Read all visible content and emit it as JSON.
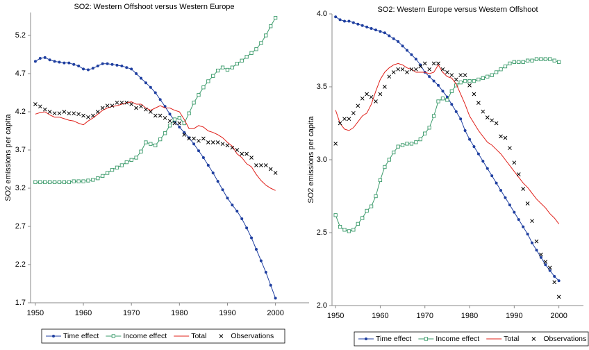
{
  "chart_data": [
    {
      "type": "line",
      "title": "SO2: Western  Offshoot versus Western  Europe",
      "y_label": "SO2 emissions per capita",
      "x": [
        1950,
        1951,
        1952,
        1953,
        1954,
        1955,
        1956,
        1957,
        1958,
        1959,
        1960,
        1961,
        1962,
        1963,
        1964,
        1965,
        1966,
        1967,
        1968,
        1969,
        1970,
        1971,
        1972,
        1973,
        1974,
        1975,
        1976,
        1977,
        1978,
        1979,
        1980,
        1981,
        1982,
        1983,
        1984,
        1985,
        1986,
        1987,
        1988,
        1989,
        1990,
        1991,
        1992,
        1993,
        1994,
        1995,
        1996,
        1997,
        1998,
        1999,
        2000
      ],
      "series": [
        {
          "name": "Time effect",
          "color": "#1f3fa0",
          "marker": "dot",
          "line": true,
          "values": [
            4.86,
            4.9,
            4.91,
            4.88,
            4.86,
            4.85,
            4.84,
            4.84,
            4.82,
            4.8,
            4.76,
            4.75,
            4.77,
            4.8,
            4.83,
            4.83,
            4.82,
            4.81,
            4.8,
            4.78,
            4.76,
            4.7,
            4.64,
            4.58,
            4.52,
            4.45,
            4.36,
            4.27,
            4.17,
            4.08,
            4.0,
            3.93,
            3.86,
            3.78,
            3.69,
            3.6,
            3.5,
            3.4,
            3.29,
            3.18,
            3.07,
            2.98,
            2.9,
            2.8,
            2.68,
            2.55,
            2.4,
            2.25,
            2.1,
            1.93,
            1.76
          ]
        },
        {
          "name": "Income effect",
          "color": "#3a9a6a",
          "marker": "square",
          "line": true,
          "values": [
            3.28,
            3.28,
            3.28,
            3.28,
            3.28,
            3.28,
            3.28,
            3.28,
            3.29,
            3.29,
            3.29,
            3.3,
            3.31,
            3.33,
            3.36,
            3.4,
            3.44,
            3.47,
            3.5,
            3.54,
            3.57,
            3.6,
            3.68,
            3.8,
            3.78,
            3.76,
            3.84,
            3.92,
            4.02,
            4.1,
            4.12,
            4.05,
            4.18,
            4.32,
            4.42,
            4.52,
            4.6,
            4.67,
            4.74,
            4.78,
            4.75,
            4.78,
            4.83,
            4.87,
            4.92,
            4.97,
            5.02,
            5.1,
            5.2,
            5.32,
            5.43
          ]
        },
        {
          "name": "Total",
          "color": "#e0201a",
          "marker": "none",
          "line": true,
          "values": [
            4.17,
            4.19,
            4.2,
            4.16,
            4.13,
            4.13,
            4.11,
            4.09,
            4.08,
            4.05,
            4.03,
            4.08,
            4.12,
            4.17,
            4.22,
            4.25,
            4.27,
            4.28,
            4.3,
            4.32,
            4.33,
            4.3,
            4.3,
            4.25,
            4.22,
            4.25,
            4.28,
            4.25,
            4.25,
            4.22,
            4.2,
            4.1,
            3.98,
            3.98,
            4.02,
            4.0,
            3.95,
            3.93,
            3.9,
            3.86,
            3.8,
            3.75,
            3.65,
            3.6,
            3.52,
            3.48,
            3.38,
            3.3,
            3.24,
            3.2,
            3.17
          ]
        },
        {
          "name": "Observations",
          "color": "#000000",
          "marker": "x",
          "line": false,
          "values": [
            4.3,
            4.27,
            4.23,
            4.2,
            4.18,
            4.18,
            4.2,
            4.18,
            4.18,
            4.17,
            4.15,
            4.13,
            4.15,
            4.2,
            4.25,
            4.28,
            4.28,
            4.32,
            4.32,
            4.32,
            4.3,
            4.25,
            4.27,
            4.23,
            4.2,
            4.15,
            4.15,
            4.12,
            4.08,
            4.05,
            4.05,
            3.9,
            3.85,
            3.85,
            3.82,
            3.85,
            3.8,
            3.8,
            3.8,
            3.78,
            3.76,
            3.73,
            3.7,
            3.65,
            3.65,
            3.6,
            3.5,
            3.5,
            3.5,
            3.45,
            3.4
          ]
        }
      ],
      "xlim": [
        1949,
        2007
      ],
      "xticks": [
        1950,
        1960,
        1970,
        1980,
        1990,
        2000
      ],
      "ylim": [
        1.7,
        5.5
      ],
      "yticks": [
        1.7,
        2.2,
        2.7,
        3.2,
        3.7,
        4.2,
        4.7,
        5.2
      ],
      "grid": false
    },
    {
      "type": "line",
      "title": "SO2: Western Europe versus Western Offshoot",
      "y_label": "SO2 emissions per capita",
      "x": [
        1950,
        1951,
        1952,
        1953,
        1954,
        1955,
        1956,
        1957,
        1958,
        1959,
        1960,
        1961,
        1962,
        1963,
        1964,
        1965,
        1966,
        1967,
        1968,
        1969,
        1970,
        1971,
        1972,
        1973,
        1974,
        1975,
        1976,
        1977,
        1978,
        1979,
        1980,
        1981,
        1982,
        1983,
        1984,
        1985,
        1986,
        1987,
        1988,
        1989,
        1990,
        1991,
        1992,
        1993,
        1994,
        1995,
        1996,
        1997,
        1998,
        1999,
        2000
      ],
      "series": [
        {
          "name": "Time effect",
          "color": "#1f3fa0",
          "marker": "dot",
          "line": true,
          "values": [
            3.98,
            3.96,
            3.95,
            3.95,
            3.94,
            3.93,
            3.92,
            3.91,
            3.9,
            3.89,
            3.88,
            3.87,
            3.85,
            3.83,
            3.81,
            3.78,
            3.75,
            3.72,
            3.69,
            3.65,
            3.6,
            3.57,
            3.54,
            3.51,
            3.47,
            3.43,
            3.38,
            3.33,
            3.28,
            3.2,
            3.14,
            3.09,
            3.04,
            2.99,
            2.94,
            2.89,
            2.84,
            2.79,
            2.74,
            2.69,
            2.64,
            2.59,
            2.54,
            2.49,
            2.43,
            2.38,
            2.33,
            2.28,
            2.24,
            2.2,
            2.17
          ]
        },
        {
          "name": "Income effect",
          "color": "#3a9a6a",
          "marker": "square",
          "line": true,
          "values": [
            2.62,
            2.54,
            2.52,
            2.51,
            2.52,
            2.56,
            2.6,
            2.65,
            2.68,
            2.75,
            2.86,
            2.95,
            3.0,
            3.05,
            3.09,
            3.1,
            3.11,
            3.11,
            3.12,
            3.14,
            3.18,
            3.22,
            3.3,
            3.4,
            3.42,
            3.41,
            3.47,
            3.51,
            3.53,
            3.54,
            3.54,
            3.54,
            3.55,
            3.56,
            3.57,
            3.58,
            3.6,
            3.62,
            3.64,
            3.66,
            3.67,
            3.67,
            3.67,
            3.68,
            3.68,
            3.69,
            3.69,
            3.69,
            3.69,
            3.68,
            3.67
          ]
        },
        {
          "name": "Total",
          "color": "#e0201a",
          "marker": "none",
          "line": true,
          "values": [
            3.34,
            3.25,
            3.21,
            3.2,
            3.22,
            3.26,
            3.3,
            3.32,
            3.38,
            3.47,
            3.55,
            3.6,
            3.63,
            3.65,
            3.66,
            3.65,
            3.63,
            3.62,
            3.6,
            3.6,
            3.6,
            3.59,
            3.6,
            3.65,
            3.6,
            3.57,
            3.56,
            3.52,
            3.45,
            3.38,
            3.3,
            3.25,
            3.2,
            3.16,
            3.12,
            3.1,
            3.07,
            3.04,
            3.0,
            2.96,
            2.92,
            2.88,
            2.84,
            2.81,
            2.77,
            2.73,
            2.7,
            2.67,
            2.63,
            2.6,
            2.56
          ]
        },
        {
          "name": "Observations",
          "color": "#000000",
          "marker": "x",
          "line": false,
          "values": [
            3.11,
            3.25,
            3.28,
            3.28,
            3.32,
            3.37,
            3.42,
            3.45,
            3.43,
            3.4,
            3.45,
            3.5,
            3.57,
            3.6,
            3.62,
            3.62,
            3.6,
            3.62,
            3.62,
            3.64,
            3.66,
            3.62,
            3.66,
            3.66,
            3.62,
            3.6,
            3.58,
            3.55,
            3.58,
            3.58,
            3.51,
            3.45,
            3.39,
            3.33,
            3.29,
            3.27,
            3.25,
            3.16,
            3.15,
            3.08,
            2.98,
            2.9,
            2.8,
            2.7,
            2.58,
            2.44,
            2.35,
            2.3,
            2.26,
            2.16,
            2.06
          ]
        }
      ],
      "xlim": [
        1949.2,
        2005.5
      ],
      "xticks": [
        1950,
        1960,
        1970,
        1980,
        1990,
        2000
      ],
      "ylim": [
        2.0,
        4.0
      ],
      "yticks": [
        {
          "value": 2.0,
          "label": "2.0"
        },
        2.5,
        {
          "value": 3.0,
          "label": "3.0"
        },
        3.5,
        {
          "value": 4.0,
          "label": "4.0"
        }
      ],
      "grid": false
    }
  ]
}
